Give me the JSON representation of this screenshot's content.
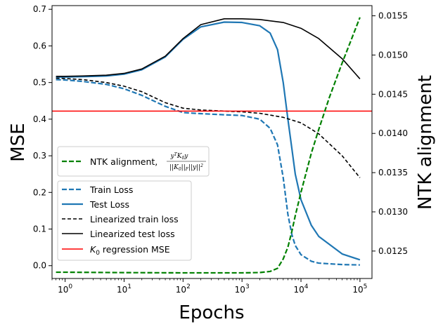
{
  "chart_data": {
    "type": "line",
    "xlabel": "Epochs",
    "ylabel_left": "MSE",
    "ylabel_right": "NTK alignment",
    "xscale": "log",
    "xlim": [
      0.6,
      160000
    ],
    "ylim_left": [
      -0.035,
      0.71
    ],
    "ylim_right": [
      0.01215,
      0.01563
    ],
    "x_ticks": [
      {
        "value": 1,
        "base": "10",
        "exp": "0"
      },
      {
        "value": 10,
        "base": "10",
        "exp": "1"
      },
      {
        "value": 100,
        "base": "10",
        "exp": "2"
      },
      {
        "value": 1000,
        "base": "10",
        "exp": "3"
      },
      {
        "value": 10000,
        "base": "10",
        "exp": "4"
      },
      {
        "value": 100000,
        "base": "10",
        "exp": "5"
      }
    ],
    "y_ticks_left": [
      {
        "value": 0.0,
        "label": "0.0"
      },
      {
        "value": 0.1,
        "label": "0.1"
      },
      {
        "value": 0.2,
        "label": "0.2"
      },
      {
        "value": 0.3,
        "label": "0.3"
      },
      {
        "value": 0.4,
        "label": "0.4"
      },
      {
        "value": 0.5,
        "label": "0.5"
      },
      {
        "value": 0.6,
        "label": "0.6"
      },
      {
        "value": 0.7,
        "label": "0.7"
      }
    ],
    "y_ticks_right": [
      {
        "value": 0.0125,
        "label": "0.0125"
      },
      {
        "value": 0.013,
        "label": "0.0130"
      },
      {
        "value": 0.0135,
        "label": "0.0135"
      },
      {
        "value": 0.014,
        "label": "0.0140"
      },
      {
        "value": 0.0145,
        "label": "0.0145"
      },
      {
        "value": 0.015,
        "label": "0.0150"
      },
      {
        "value": 0.0155,
        "label": "0.0155"
      }
    ],
    "series": [
      {
        "name": "Train Loss",
        "axis": "left",
        "color": "#1f77b4",
        "dash": "dashed",
        "x": [
          0.7,
          1,
          2,
          5,
          10,
          20,
          50,
          100,
          200,
          500,
          1000,
          2000,
          3000,
          4000,
          5000,
          6000,
          7000,
          8000,
          10000,
          15000,
          20000,
          50000,
          100000
        ],
        "y": [
          0.508,
          0.507,
          0.503,
          0.495,
          0.483,
          0.465,
          0.435,
          0.418,
          0.415,
          0.412,
          0.41,
          0.4,
          0.375,
          0.33,
          0.24,
          0.14,
          0.085,
          0.055,
          0.03,
          0.012,
          0.007,
          0.003,
          0.002
        ]
      },
      {
        "name": "Test Loss",
        "axis": "left",
        "color": "#1f77b4",
        "dash": "solid",
        "x": [
          0.7,
          1,
          2,
          5,
          10,
          20,
          50,
          100,
          200,
          500,
          1000,
          2000,
          3000,
          4000,
          5000,
          6000,
          7000,
          8000,
          10000,
          15000,
          20000,
          50000,
          100000
        ],
        "y": [
          0.515,
          0.515,
          0.516,
          0.518,
          0.523,
          0.535,
          0.57,
          0.618,
          0.652,
          0.665,
          0.664,
          0.655,
          0.635,
          0.59,
          0.5,
          0.4,
          0.32,
          0.25,
          0.18,
          0.11,
          0.08,
          0.032,
          0.016
        ]
      },
      {
        "name": "Linearized train loss",
        "axis": "left",
        "color": "#000000",
        "dash": "dashed",
        "x": [
          0.7,
          1,
          2,
          5,
          10,
          20,
          50,
          100,
          200,
          500,
          1000,
          2000,
          5000,
          10000,
          20000,
          50000,
          100000
        ],
        "y": [
          0.512,
          0.511,
          0.508,
          0.5,
          0.49,
          0.475,
          0.445,
          0.43,
          0.425,
          0.422,
          0.42,
          0.416,
          0.405,
          0.39,
          0.36,
          0.3,
          0.24
        ]
      },
      {
        "name": "Linearized test loss",
        "axis": "left",
        "color": "#000000",
        "dash": "solid",
        "x": [
          0.7,
          1,
          2,
          5,
          10,
          20,
          50,
          100,
          200,
          500,
          1000,
          2000,
          5000,
          10000,
          20000,
          50000,
          100000
        ],
        "y": [
          0.517,
          0.517,
          0.518,
          0.52,
          0.525,
          0.537,
          0.572,
          0.62,
          0.658,
          0.674,
          0.674,
          0.672,
          0.664,
          0.648,
          0.62,
          0.565,
          0.51
        ]
      },
      {
        "name_prefix": "K",
        "name_sub": "0",
        "name_suffix": " regression MSE",
        "axis": "left",
        "color": "#ff0000",
        "dash": "solid",
        "hline": true,
        "y": 0.422
      },
      {
        "name_prefix": "NTK alignment, ",
        "axis": "right",
        "color": "#008000",
        "dash": "dashed",
        "width": 2.2,
        "x": [
          0.7,
          1,
          10,
          100,
          1000,
          2000,
          3000,
          4000,
          5000,
          6000,
          7000,
          8000,
          10000,
          15000,
          20000,
          30000,
          50000,
          70000,
          100000
        ],
        "y": [
          0.01223,
          0.01223,
          0.012225,
          0.012222,
          0.012222,
          0.012226,
          0.01224,
          0.01228,
          0.0124,
          0.01255,
          0.01275,
          0.01295,
          0.01325,
          0.01375,
          0.01405,
          0.01445,
          0.0149,
          0.01518,
          0.01548
        ]
      }
    ],
    "legend_ntk": {
      "prefix": "NTK alignment, ",
      "frac_num": "y",
      "frac_num_sup": "T",
      "frac_num_mid": "K",
      "frac_num_sub": "0",
      "frac_num_end": "y",
      "frac_den": "||K",
      "frac_den_sub": "0",
      "frac_den_mid": "||",
      "frac_den_f": "F",
      "frac_den_end": "||y||",
      "frac_den_sup": "2"
    },
    "legend_position": "center-left"
  }
}
